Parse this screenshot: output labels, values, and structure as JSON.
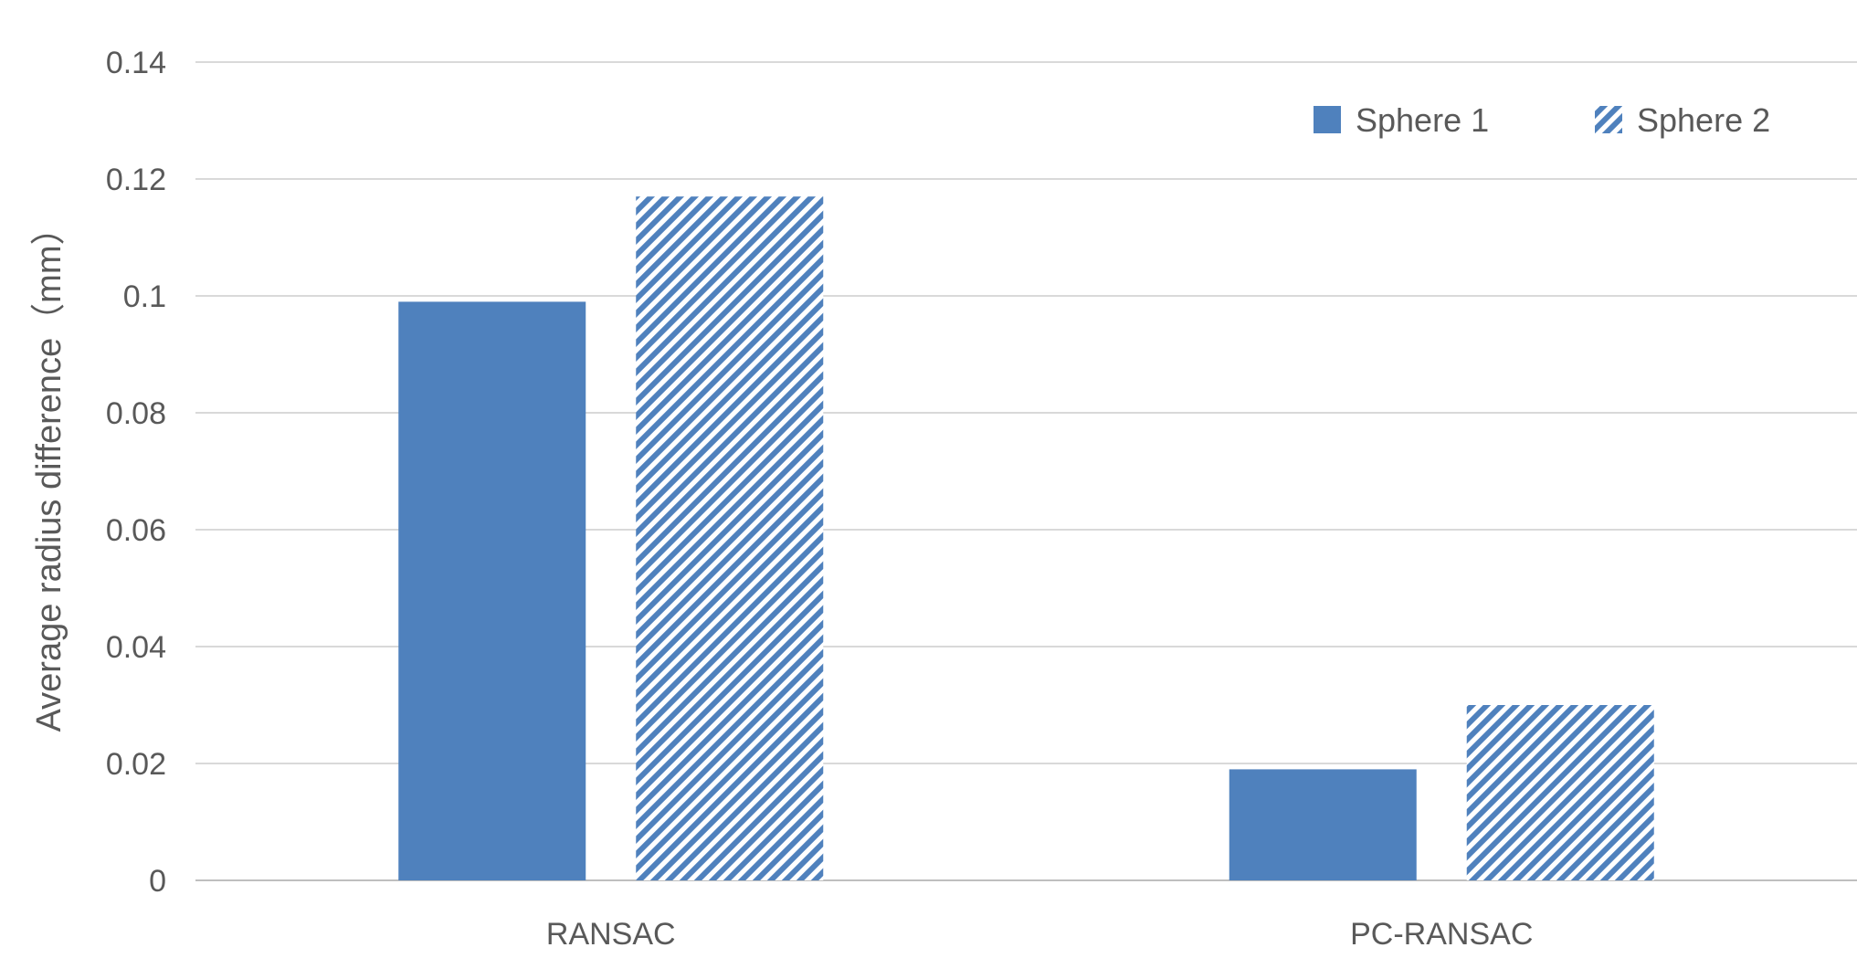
{
  "colors": {
    "series_primary": "#4f81bd",
    "grid": "#d9d9d9",
    "text": "#595959"
  },
  "chart_data": {
    "type": "bar",
    "title": "",
    "xlabel": "",
    "ylabel": "Average radius difference（mm）",
    "categories": [
      "RANSAC",
      "PC-RANSAC"
    ],
    "series": [
      {
        "name": "Sphere 1",
        "pattern": "solid",
        "values": [
          0.099,
          0.019
        ]
      },
      {
        "name": "Sphere 2",
        "pattern": "diagonal-stripes",
        "values": [
          0.117,
          0.03
        ]
      }
    ],
    "ylim": [
      0,
      0.14
    ],
    "yticks": [
      0,
      0.02,
      0.04,
      0.06,
      0.08,
      0.1,
      0.12,
      0.14
    ],
    "ytick_labels": [
      "0",
      "0.02",
      "0.04",
      "0.06",
      "0.08",
      "0.1",
      "0.12",
      "0.14"
    ],
    "grid": true,
    "legend_position": "top-right"
  }
}
